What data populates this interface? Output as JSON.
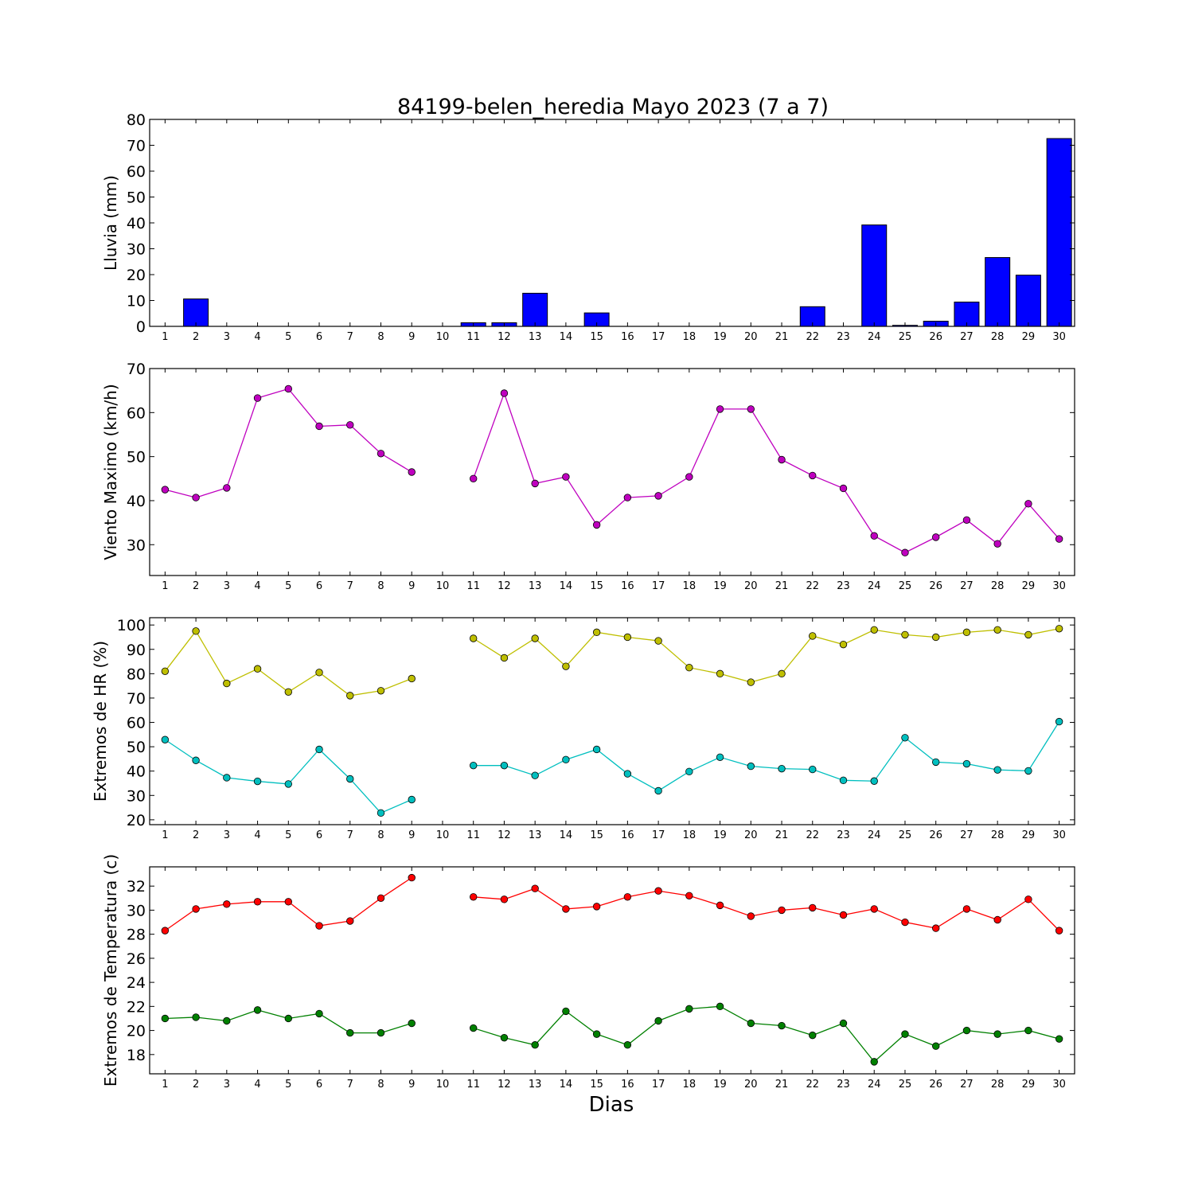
{
  "title": "84199-belen_heredia Mayo 2023  (7 a 7)",
  "xlabel": "Dias",
  "days": [
    1,
    2,
    3,
    4,
    5,
    6,
    7,
    8,
    9,
    10,
    11,
    12,
    13,
    14,
    15,
    16,
    17,
    18,
    19,
    20,
    21,
    22,
    23,
    24,
    25,
    26,
    27,
    28,
    29,
    30
  ],
  "chart_data": [
    {
      "type": "bar",
      "ylabel": "Lluvia (mm)",
      "ylim": [
        0,
        80
      ],
      "yticks": [
        0,
        10,
        20,
        30,
        40,
        50,
        60,
        70,
        80
      ],
      "categories": [
        1,
        2,
        3,
        4,
        5,
        6,
        7,
        8,
        9,
        10,
        11,
        12,
        13,
        14,
        15,
        16,
        17,
        18,
        19,
        20,
        21,
        22,
        23,
        24,
        25,
        26,
        27,
        28,
        29,
        30
      ],
      "series": [
        {
          "color": "#0000ff",
          "values": [
            0,
            10.6,
            0,
            0,
            0,
            0,
            0,
            0,
            0,
            0,
            1.4,
            1.4,
            12.8,
            0,
            5.2,
            0,
            0,
            0,
            0,
            0,
            0,
            7.6,
            0,
            39.2,
            0.4,
            2.0,
            9.4,
            26.6,
            19.8,
            72.6
          ]
        }
      ]
    },
    {
      "type": "line",
      "ylabel": "Viento Maximo (km/h)",
      "ylim": [
        23,
        70
      ],
      "yticks": [
        30,
        40,
        50,
        60,
        70
      ],
      "x": [
        1,
        2,
        3,
        4,
        5,
        6,
        7,
        8,
        9,
        10,
        11,
        12,
        13,
        14,
        15,
        16,
        17,
        18,
        19,
        20,
        21,
        22,
        23,
        24,
        25,
        26,
        27,
        28,
        29,
        30
      ],
      "series": [
        {
          "color": "#bf00bf",
          "values": [
            42.5,
            40.7,
            42.9,
            63.3,
            65.4,
            56.9,
            57.2,
            50.7,
            46.5,
            null,
            45.0,
            64.4,
            43.9,
            45.4,
            34.5,
            40.7,
            41.1,
            45.4,
            60.8,
            60.8,
            49.3,
            45.7,
            42.8,
            32.0,
            28.2,
            31.7,
            35.6,
            30.2,
            39.3,
            31.3
          ]
        }
      ]
    },
    {
      "type": "line",
      "ylabel": "Extremos de HR (%)",
      "ylim": [
        18,
        103
      ],
      "yticks": [
        20,
        30,
        40,
        50,
        60,
        70,
        80,
        90,
        100
      ],
      "x": [
        1,
        2,
        3,
        4,
        5,
        6,
        7,
        8,
        9,
        10,
        11,
        12,
        13,
        14,
        15,
        16,
        17,
        18,
        19,
        20,
        21,
        22,
        23,
        24,
        25,
        26,
        27,
        28,
        29,
        30
      ],
      "series": [
        {
          "color": "#bfbf00",
          "values": [
            81,
            97.5,
            76,
            82,
            72.5,
            80.5,
            71,
            73,
            78,
            null,
            94.5,
            86.5,
            94.5,
            83,
            97,
            95,
            93.5,
            82.5,
            80,
            76.5,
            80,
            95.5,
            92,
            98,
            96,
            95,
            97,
            98,
            96,
            98.5
          ]
        },
        {
          "color": "#00bfbf",
          "values": [
            52.9,
            44.4,
            37.3,
            35.8,
            34.7,
            48.9,
            36.8,
            22.8,
            28.3,
            null,
            42.3,
            42.3,
            38.2,
            44.7,
            48.9,
            38.9,
            31.9,
            39.8,
            45.7,
            42.0,
            41.0,
            40.7,
            36.2,
            35.9,
            53.7,
            43.7,
            43.0,
            40.5,
            40.1,
            60.3
          ]
        }
      ]
    },
    {
      "type": "line",
      "ylabel": "Extremos de Temperatura (c)",
      "ylim": [
        16.4,
        33.6
      ],
      "yticks": [
        18,
        20,
        22,
        24,
        26,
        28,
        30,
        32
      ],
      "x": [
        1,
        2,
        3,
        4,
        5,
        6,
        7,
        8,
        9,
        10,
        11,
        12,
        13,
        14,
        15,
        16,
        17,
        18,
        19,
        20,
        21,
        22,
        23,
        24,
        25,
        26,
        27,
        28,
        29,
        30
      ],
      "series": [
        {
          "color": "#ff0000",
          "values": [
            28.3,
            30.1,
            30.5,
            30.7,
            30.7,
            28.7,
            29.1,
            31.0,
            32.7,
            null,
            31.1,
            30.9,
            31.8,
            30.1,
            30.3,
            31.1,
            31.6,
            31.2,
            30.4,
            29.5,
            30.0,
            30.2,
            29.6,
            30.1,
            29.0,
            28.5,
            30.1,
            29.2,
            30.9,
            28.3
          ]
        },
        {
          "color": "#008000",
          "values": [
            21.0,
            21.1,
            20.8,
            21.7,
            21.0,
            21.4,
            19.8,
            19.8,
            20.6,
            null,
            20.2,
            19.4,
            18.8,
            21.6,
            19.7,
            18.8,
            20.8,
            21.8,
            22.0,
            20.6,
            20.4,
            19.6,
            20.6,
            17.4,
            19.7,
            18.7,
            20.0,
            19.7,
            20.0,
            19.3
          ]
        }
      ]
    }
  ]
}
